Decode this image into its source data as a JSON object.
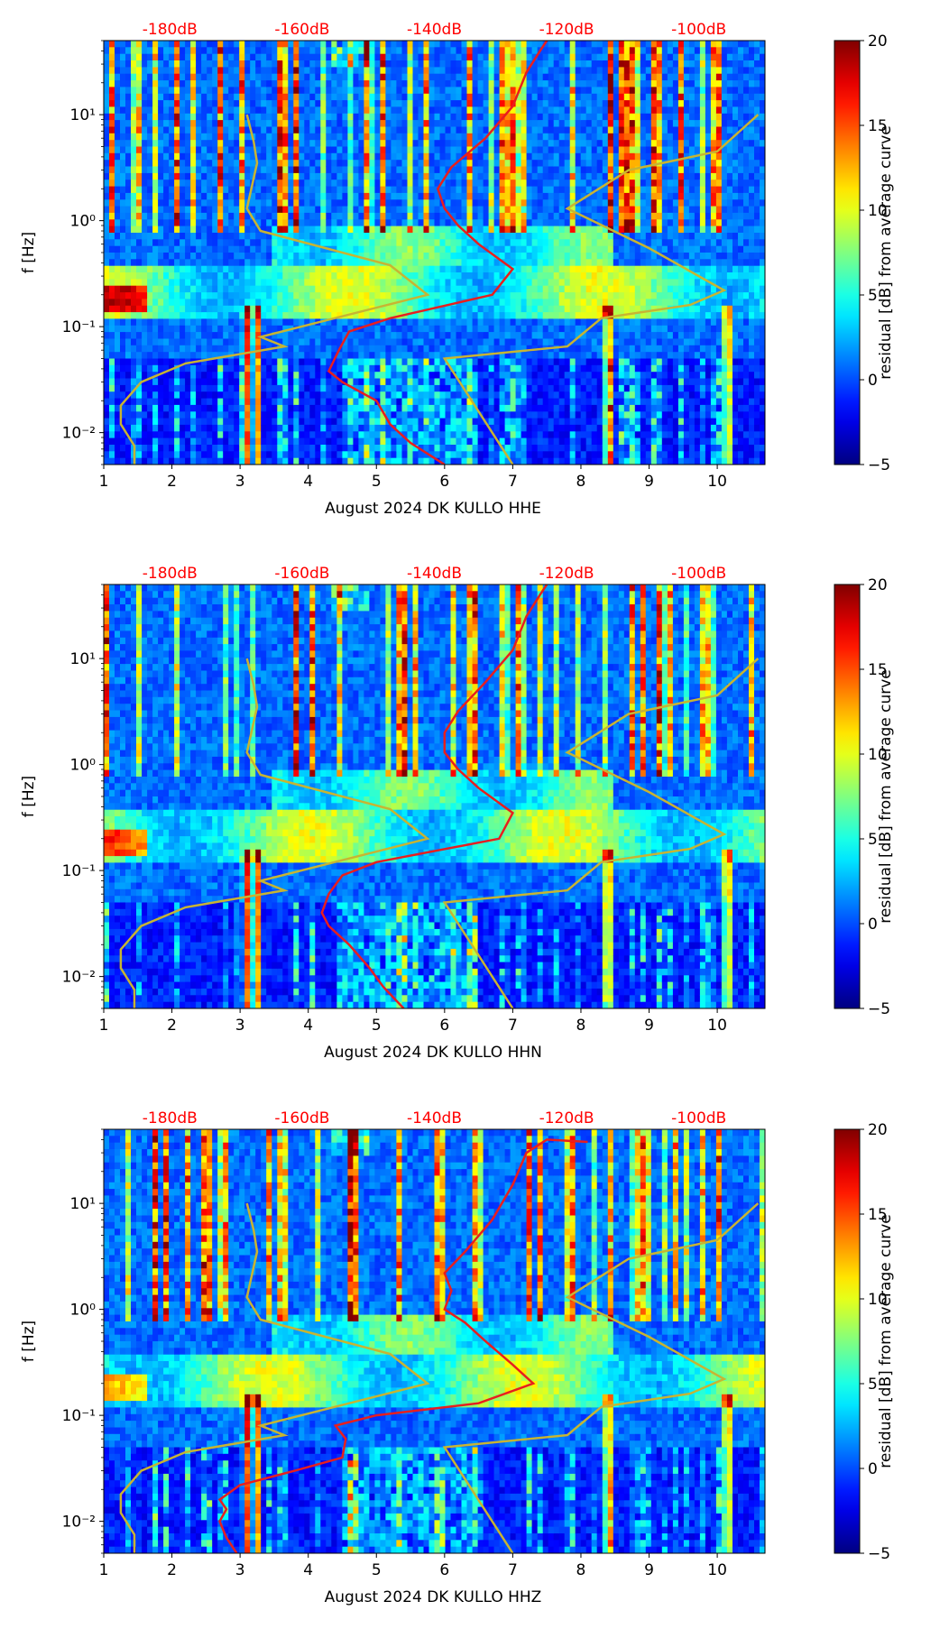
{
  "chart_data": [
    {
      "type": "heatmap",
      "title": "",
      "xlabel": "August 2024 DK KULLO  HHE",
      "ylabel": "f [Hz]",
      "channel": "HHE",
      "xlim": [
        1.0,
        10.7
      ],
      "ylim": [
        0.005,
        50
      ],
      "y_scale": "log",
      "x_ticks": [
        "1",
        "2",
        "3",
        "4",
        "5",
        "6",
        "7",
        "8",
        "9",
        "10"
      ],
      "y_ticks": [
        "10¹",
        "10⁰",
        "10⁻¹",
        "10⁻²"
      ],
      "top_ticks": [
        "-180dB",
        "-160dB",
        "-140dB",
        "-120dB",
        "-100dB"
      ],
      "colorbar": {
        "label": "residual [dB] from average curve",
        "range": [
          -5,
          20
        ],
        "ticks": [
          "20",
          "15",
          "10",
          "5",
          "0",
          "−5"
        ],
        "colormap": "jet"
      },
      "noise_model_curves": {
        "color": "#c8b432",
        "low": [
          [
            1.45,
            0.005
          ],
          [
            1.45,
            0.0075
          ],
          [
            1.25,
            0.012
          ],
          [
            1.25,
            0.018
          ],
          [
            1.55,
            0.03
          ],
          [
            2.2,
            0.045
          ],
          [
            3.65,
            0.065
          ],
          [
            3.3,
            0.08
          ],
          [
            5.75,
            0.2
          ],
          [
            5.2,
            0.38
          ],
          [
            3.3,
            0.8
          ],
          [
            3.1,
            1.3
          ],
          [
            3.25,
            3.5
          ],
          [
            3.2,
            5.6
          ],
          [
            3.1,
            10
          ]
        ],
        "high": [
          [
            7.0,
            0.005
          ],
          [
            6.0,
            0.05
          ],
          [
            7.8,
            0.065
          ],
          [
            8.3,
            0.12
          ],
          [
            9.6,
            0.16
          ],
          [
            10.1,
            0.22
          ],
          [
            9.0,
            0.55
          ],
          [
            7.8,
            1.3
          ],
          [
            8.7,
            3.0
          ],
          [
            10.0,
            4.5
          ],
          [
            10.6,
            10
          ]
        ]
      },
      "median_curve": {
        "color": "#e81e1e",
        "points": [
          [
            6.0,
            0.005
          ],
          [
            5.5,
            0.008
          ],
          [
            5.2,
            0.012
          ],
          [
            5.0,
            0.02
          ],
          [
            4.5,
            0.03
          ],
          [
            4.3,
            0.038
          ],
          [
            4.45,
            0.06
          ],
          [
            4.6,
            0.09
          ],
          [
            5.2,
            0.12
          ],
          [
            6.7,
            0.2
          ],
          [
            7.0,
            0.35
          ],
          [
            6.5,
            0.6
          ],
          [
            6.2,
            0.9
          ],
          [
            6.0,
            1.3
          ],
          [
            5.9,
            2.0
          ],
          [
            6.1,
            3.2
          ],
          [
            6.6,
            6
          ],
          [
            7.0,
            12
          ],
          [
            7.2,
            25
          ],
          [
            7.4,
            40
          ],
          [
            7.5,
            50
          ]
        ]
      },
      "features": {
        "microseism_band_hz": [
          0.12,
          0.4
        ],
        "secondary_band_hz": [
          0.4,
          0.9
        ],
        "red_events_day": [
          3.1,
          3.25,
          8.4,
          10.15
        ]
      }
    },
    {
      "type": "heatmap",
      "title": "",
      "xlabel": "August 2024 DK KULLO  HHN",
      "ylabel": "f [Hz]",
      "channel": "HHN",
      "xlim": [
        1.0,
        10.7
      ],
      "ylim": [
        0.005,
        50
      ],
      "y_scale": "log",
      "x_ticks": [
        "1",
        "2",
        "3",
        "4",
        "5",
        "6",
        "7",
        "8",
        "9",
        "10"
      ],
      "y_ticks": [
        "10¹",
        "10⁰",
        "10⁻¹",
        "10⁻²"
      ],
      "top_ticks": [
        "-180dB",
        "-160dB",
        "-140dB",
        "-120dB",
        "-100dB"
      ],
      "colorbar": {
        "label": "residual [dB] from average curve",
        "range": [
          -5,
          20
        ],
        "ticks": [
          "20",
          "15",
          "10",
          "5",
          "0",
          "−5"
        ],
        "colormap": "jet"
      },
      "noise_model_curves": {
        "color": "#c8b432",
        "low": [
          [
            1.45,
            0.005
          ],
          [
            1.45,
            0.0075
          ],
          [
            1.25,
            0.012
          ],
          [
            1.25,
            0.018
          ],
          [
            1.55,
            0.03
          ],
          [
            2.2,
            0.045
          ],
          [
            3.65,
            0.065
          ],
          [
            3.3,
            0.08
          ],
          [
            5.75,
            0.2
          ],
          [
            5.2,
            0.38
          ],
          [
            3.3,
            0.8
          ],
          [
            3.1,
            1.3
          ],
          [
            3.25,
            3.5
          ],
          [
            3.2,
            5.6
          ],
          [
            3.1,
            10
          ]
        ],
        "high": [
          [
            7.0,
            0.005
          ],
          [
            6.0,
            0.05
          ],
          [
            7.8,
            0.065
          ],
          [
            8.3,
            0.12
          ],
          [
            9.6,
            0.16
          ],
          [
            10.1,
            0.22
          ],
          [
            9.0,
            0.55
          ],
          [
            7.8,
            1.3
          ],
          [
            8.7,
            3.0
          ],
          [
            10.0,
            4.5
          ],
          [
            10.6,
            10
          ]
        ]
      },
      "median_curve": {
        "color": "#e81e1e",
        "points": [
          [
            5.4,
            0.005
          ],
          [
            5.1,
            0.008
          ],
          [
            4.9,
            0.012
          ],
          [
            4.6,
            0.02
          ],
          [
            4.3,
            0.03
          ],
          [
            4.2,
            0.04
          ],
          [
            4.3,
            0.06
          ],
          [
            4.5,
            0.09
          ],
          [
            5.0,
            0.12
          ],
          [
            6.8,
            0.2
          ],
          [
            7.0,
            0.35
          ],
          [
            6.5,
            0.6
          ],
          [
            6.2,
            0.9
          ],
          [
            6.0,
            1.3
          ],
          [
            6.0,
            2.0
          ],
          [
            6.2,
            3.2
          ],
          [
            6.6,
            6
          ],
          [
            7.0,
            12
          ],
          [
            7.2,
            25
          ],
          [
            7.4,
            40
          ],
          [
            7.5,
            50
          ]
        ]
      },
      "features": {
        "microseism_band_hz": [
          0.12,
          0.4
        ],
        "secondary_band_hz": [
          0.4,
          0.9
        ],
        "red_events_day": [
          3.1,
          3.25,
          8.4,
          10.15
        ]
      }
    },
    {
      "type": "heatmap",
      "title": "",
      "xlabel": "August 2024 DK KULLO  HHZ",
      "ylabel": "f [Hz]",
      "channel": "HHZ",
      "xlim": [
        1.0,
        10.7
      ],
      "ylim": [
        0.005,
        50
      ],
      "y_scale": "log",
      "x_ticks": [
        "1",
        "2",
        "3",
        "4",
        "5",
        "6",
        "7",
        "8",
        "9",
        "10"
      ],
      "y_ticks": [
        "10¹",
        "10⁰",
        "10⁻¹",
        "10⁻²"
      ],
      "top_ticks": [
        "-180dB",
        "-160dB",
        "-140dB",
        "-120dB",
        "-100dB"
      ],
      "colorbar": {
        "label": "residual [dB] from average curve",
        "range": [
          -5,
          20
        ],
        "ticks": [
          "20",
          "15",
          "10",
          "5",
          "0",
          "−5"
        ],
        "colormap": "jet"
      },
      "noise_model_curves": {
        "color": "#c8b432",
        "low": [
          [
            1.45,
            0.005
          ],
          [
            1.45,
            0.0075
          ],
          [
            1.25,
            0.012
          ],
          [
            1.25,
            0.018
          ],
          [
            1.55,
            0.03
          ],
          [
            2.2,
            0.045
          ],
          [
            3.65,
            0.065
          ],
          [
            3.3,
            0.08
          ],
          [
            5.75,
            0.2
          ],
          [
            5.2,
            0.38
          ],
          [
            3.3,
            0.8
          ],
          [
            3.1,
            1.3
          ],
          [
            3.25,
            3.5
          ],
          [
            3.2,
            5.6
          ],
          [
            3.1,
            10
          ]
        ],
        "high": [
          [
            7.0,
            0.005
          ],
          [
            6.0,
            0.05
          ],
          [
            7.8,
            0.065
          ],
          [
            8.3,
            0.12
          ],
          [
            9.6,
            0.16
          ],
          [
            10.1,
            0.22
          ],
          [
            9.0,
            0.55
          ],
          [
            7.8,
            1.3
          ],
          [
            8.7,
            3.0
          ],
          [
            10.0,
            4.5
          ],
          [
            10.6,
            10
          ]
        ]
      },
      "median_curve": {
        "color": "#e81e1e",
        "points": [
          [
            2.95,
            0.005
          ],
          [
            2.8,
            0.007
          ],
          [
            2.7,
            0.01
          ],
          [
            2.8,
            0.013
          ],
          [
            2.7,
            0.016
          ],
          [
            3.0,
            0.022
          ],
          [
            3.8,
            0.03
          ],
          [
            4.5,
            0.04
          ],
          [
            4.55,
            0.06
          ],
          [
            4.4,
            0.08
          ],
          [
            5.0,
            0.1
          ],
          [
            6.5,
            0.13
          ],
          [
            7.3,
            0.2
          ],
          [
            7.0,
            0.3
          ],
          [
            6.6,
            0.5
          ],
          [
            6.3,
            0.75
          ],
          [
            6.0,
            1.0
          ],
          [
            6.1,
            1.5
          ],
          [
            6.0,
            2.2
          ],
          [
            6.3,
            3.5
          ],
          [
            6.7,
            7
          ],
          [
            7.0,
            15
          ],
          [
            7.2,
            30
          ],
          [
            7.5,
            40
          ],
          [
            8.1,
            38
          ]
        ]
      },
      "features": {
        "microseism_band_hz": [
          0.12,
          0.4
        ],
        "secondary_band_hz": [
          0.4,
          0.9
        ],
        "red_events_day": [
          3.1,
          3.25,
          8.4,
          10.15
        ]
      }
    }
  ]
}
